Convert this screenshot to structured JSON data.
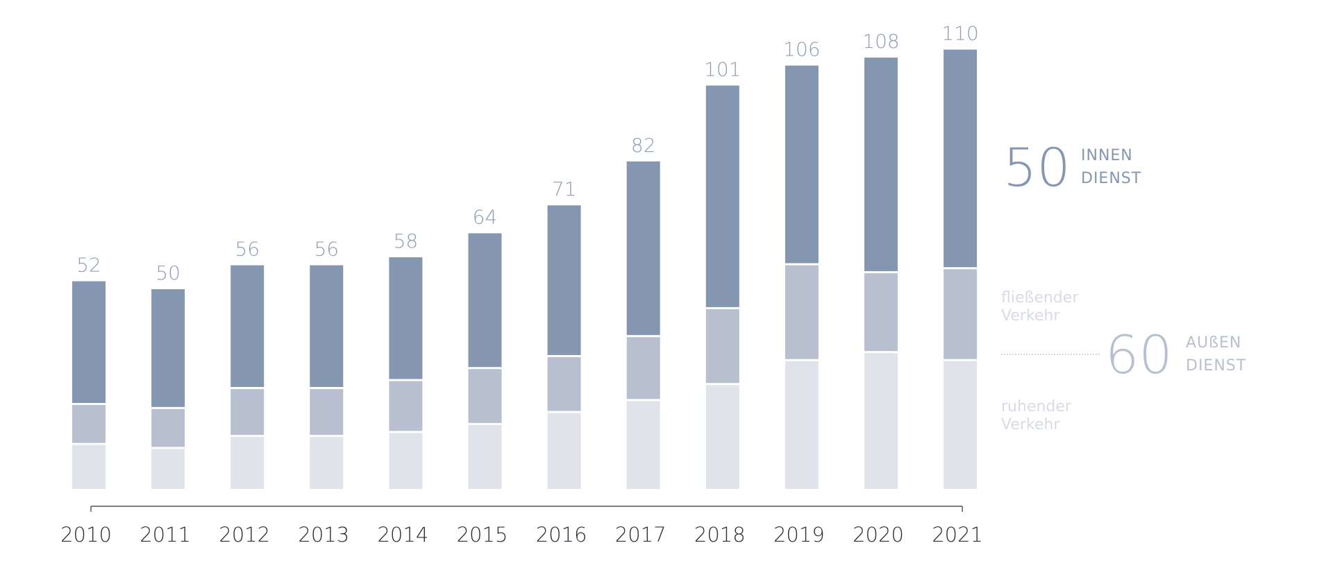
{
  "colors": {
    "innendienst": "#8496b0",
    "fliessender_verkehr": "#b8bfcf",
    "ruhender_verkehr": "#e1e3ea",
    "axis": "#333333",
    "total_label": "#8f9db5"
  },
  "chart_data": {
    "type": "bar",
    "stacked": true,
    "categories": [
      "2010",
      "2011",
      "2012",
      "2013",
      "2014",
      "2015",
      "2016",
      "2017",
      "2018",
      "2019",
      "2020",
      "2021"
    ],
    "series": [
      {
        "name": "ruhender Verkehr",
        "values": [
          11,
          10,
          13,
          13,
          14,
          16,
          19,
          22,
          26,
          32,
          34,
          32
        ]
      },
      {
        "name": "fließender Verkehr",
        "values": [
          10,
          10,
          12,
          12,
          13,
          14,
          14,
          16,
          19,
          24,
          20,
          23
        ]
      },
      {
        "name": "INNEN DIENST",
        "values": [
          31,
          30,
          31,
          31,
          31,
          34,
          38,
          44,
          56,
          50,
          54,
          55
        ]
      }
    ],
    "totals": [
      "52",
      "50",
      "56",
      "56",
      "58",
      "64",
      "71",
      "82",
      "101",
      "106",
      "108",
      "110"
    ],
    "ylim": [
      0,
      112
    ],
    "grid": false,
    "legend": {
      "innendienst_value": "50",
      "innendienst_line1": "INNEN",
      "innendienst_line2": "DIENST",
      "fliessend_line1": "fließender",
      "fliessend_line2": "Verkehr",
      "aussendienst_value": "60",
      "aussendienst_line1": "AUßEN",
      "aussendienst_line2": "DIENST",
      "ruhend_line1": "ruhender",
      "ruhend_line2": "Verkehr"
    }
  }
}
